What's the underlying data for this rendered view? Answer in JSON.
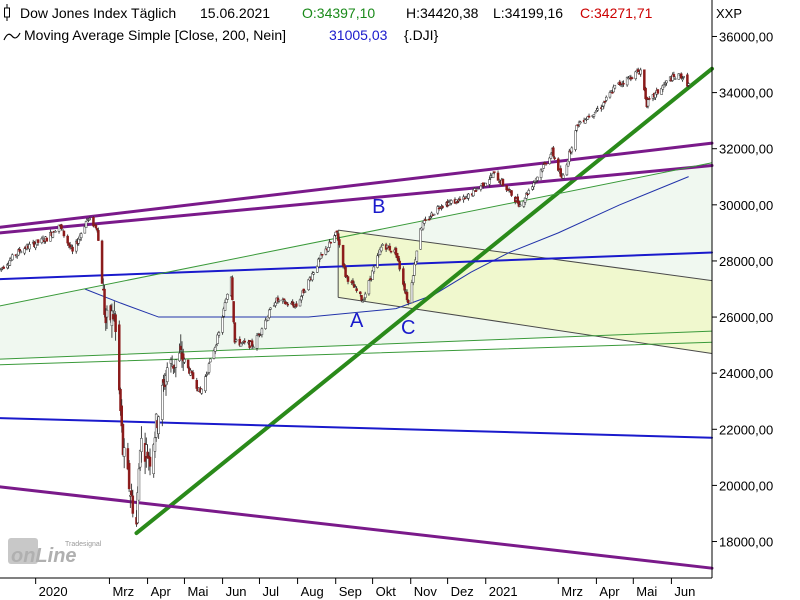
{
  "header": {
    "line1": {
      "title": "Dow Jones Index Täglich",
      "date": "15.06.2021",
      "open": "O:34397,10",
      "high": "H:34420,38",
      "low": "L:34199,16",
      "close": "C:34271,71"
    },
    "line2": {
      "indicator": "Moving Average Simple [Close, 200, Nein]",
      "value": "31005,03",
      "symbol": "{.DJI}"
    },
    "exchange": "XXP"
  },
  "colors": {
    "ohlc": "#000000",
    "close": "#cc0000",
    "ma_value": "#1a1acc",
    "trendline_green": "#2a8a1a",
    "trendline_purple": "#7a1a8a",
    "trendline_blue": "#1a1acc",
    "channel_fill": "#f0f8c8",
    "channel_line": "#4a4a4a",
    "ma_line": "#2233aa",
    "thin_green": "#3a9a3a",
    "candle_body": "#8b1a1a",
    "candle_wick": "#333333"
  },
  "logo": {
    "top": "Tradesignal",
    "bottom": "onLine"
  },
  "chart_data": {
    "type": "candlestick",
    "title": "Dow Jones Index Täglich",
    "y_ticks": [
      "18000,00",
      "20000,00",
      "22000,00",
      "24000,00",
      "26000,00",
      "28000,00",
      "30000,00",
      "32000,00",
      "34000,00",
      "36000,00"
    ],
    "y_tick_values": [
      18000,
      20000,
      22000,
      24000,
      26000,
      28000,
      30000,
      32000,
      34000,
      36000
    ],
    "x_ticks": [
      "2020",
      "Mrz",
      "Apr",
      "Mai",
      "Jun",
      "Jul",
      "Aug",
      "Sep",
      "Okt",
      "Nov",
      "Dez",
      "2021",
      "Mrz",
      "Apr",
      "Mai",
      "Jun"
    ],
    "x_tick_dates": [
      "2020-01-01",
      "2020-03-01",
      "2020-04-01",
      "2020-05-01",
      "2020-06-01",
      "2020-07-01",
      "2020-08-01",
      "2020-09-01",
      "2020-10-01",
      "2020-11-01",
      "2020-12-01",
      "2021-01-01",
      "2021-03-01",
      "2021-04-01",
      "2021-05-01",
      "2021-06-01"
    ],
    "ylim": [
      16700,
      37300
    ],
    "xlim": [
      "2019-12-03",
      "2021-07-04"
    ],
    "price_path": [
      [
        "2019-12-03",
        27700
      ],
      [
        "2019-12-20",
        28400
      ],
      [
        "2020-01-10",
        28800
      ],
      [
        "2020-01-20",
        29300
      ],
      [
        "2020-01-31",
        28300
      ],
      [
        "2020-02-12",
        29500
      ],
      [
        "2020-02-20",
        29200
      ],
      [
        "2020-02-27",
        25800
      ],
      [
        "2020-03-05",
        26100
      ],
      [
        "2020-03-12",
        21200
      ],
      [
        "2020-03-23",
        18600
      ],
      [
        "2020-03-26",
        21600
      ],
      [
        "2020-04-03",
        21000
      ],
      [
        "2020-04-17",
        24200
      ],
      [
        "2020-04-29",
        24600
      ],
      [
        "2020-05-14",
        23300
      ],
      [
        "2020-05-29",
        25400
      ],
      [
        "2020-06-08",
        27500
      ],
      [
        "2020-06-11",
        25100
      ],
      [
        "2020-06-26",
        25000
      ],
      [
        "2020-07-14",
        26600
      ],
      [
        "2020-07-31",
        26400
      ],
      [
        "2020-08-17",
        27900
      ],
      [
        "2020-09-02",
        29000
      ],
      [
        "2020-09-09",
        27500
      ],
      [
        "2020-09-23",
        26600
      ],
      [
        "2020-10-09",
        28600
      ],
      [
        "2020-10-20",
        28300
      ],
      [
        "2020-10-30",
        26500
      ],
      [
        "2020-11-09",
        29200
      ],
      [
        "2020-11-25",
        30000
      ],
      [
        "2020-12-15",
        30200
      ],
      [
        "2021-01-08",
        31100
      ],
      [
        "2021-01-29",
        30000
      ],
      [
        "2021-02-24",
        31900
      ],
      [
        "2021-03-04",
        30900
      ],
      [
        "2021-03-17",
        32900
      ],
      [
        "2021-04-05",
        33500
      ],
      [
        "2021-04-16",
        34200
      ],
      [
        "2021-05-07",
        34800
      ],
      [
        "2021-05-12",
        33600
      ],
      [
        "2021-05-31",
        34500
      ],
      [
        "2021-06-09",
        34600
      ],
      [
        "2021-06-15",
        34271.71
      ]
    ],
    "sma200_path": [
      [
        "2020-02-10",
        27000
      ],
      [
        "2020-03-10",
        26500
      ],
      [
        "2020-04-10",
        26000
      ],
      [
        "2020-06-01",
        26000
      ],
      [
        "2020-08-10",
        26000
      ],
      [
        "2020-10-20",
        26300
      ],
      [
        "2020-11-20",
        26800
      ],
      [
        "2020-12-20",
        27600
      ],
      [
        "2021-01-20",
        28300
      ],
      [
        "2021-03-01",
        29000
      ],
      [
        "2021-04-20",
        30000
      ],
      [
        "2021-06-15",
        31005.03
      ]
    ],
    "trendlines": [
      {
        "color": "trendline_green",
        "width": 4,
        "points": [
          [
            "2020-03-23",
            18300
          ],
          [
            "2021-07-04",
            34850
          ]
        ]
      },
      {
        "color": "trendline_purple",
        "width": 3,
        "points": [
          [
            "2019-12-03",
            29200
          ],
          [
            "2021-07-04",
            32200
          ]
        ]
      },
      {
        "color": "trendline_purple",
        "width": 3,
        "points": [
          [
            "2019-12-03",
            29000
          ],
          [
            "2021-07-04",
            31400
          ]
        ]
      },
      {
        "color": "trendline_purple",
        "width": 3,
        "points": [
          [
            "2019-12-03",
            19950
          ],
          [
            "2021-07-04",
            17050
          ]
        ]
      },
      {
        "color": "trendline_blue",
        "width": 2,
        "points": [
          [
            "2019-12-03",
            27350
          ],
          [
            "2021-07-04",
            28300
          ]
        ]
      },
      {
        "color": "trendline_blue",
        "width": 2,
        "points": [
          [
            "2019-12-03",
            22400
          ],
          [
            "2021-07-04",
            21700
          ]
        ]
      },
      {
        "color": "thin_green",
        "width": 1,
        "points": [
          [
            "2019-12-03",
            26400
          ],
          [
            "2021-07-04",
            31500
          ]
        ]
      },
      {
        "color": "thin_green",
        "width": 1,
        "points": [
          [
            "2019-12-03",
            24500
          ],
          [
            "2021-07-04",
            25500
          ]
        ]
      },
      {
        "color": "thin_green",
        "width": 1,
        "points": [
          [
            "2019-12-03",
            24300
          ],
          [
            "2021-07-04",
            25100
          ]
        ]
      }
    ],
    "channel": {
      "upper": [
        [
          "2020-09-03",
          29100
        ],
        [
          "2021-07-04",
          27300
        ]
      ],
      "lower": [
        [
          "2020-09-03",
          26700
        ],
        [
          "2021-07-04",
          24700
        ]
      ]
    },
    "upper_band": {
      "upper": [
        [
          "2019-12-03",
          26400
        ],
        [
          "2021-07-04",
          31500
        ]
      ],
      "lower": [
        [
          "2019-12-03",
          24500
        ],
        [
          "2021-07-04",
          25500
        ]
      ]
    },
    "annotations": [
      {
        "label": "A",
        "x": "2020-09-18",
        "y": 25650
      },
      {
        "label": "B",
        "x": "2020-10-06",
        "y": 29700
      },
      {
        "label": "C",
        "x": "2020-10-30",
        "y": 25400
      }
    ]
  }
}
